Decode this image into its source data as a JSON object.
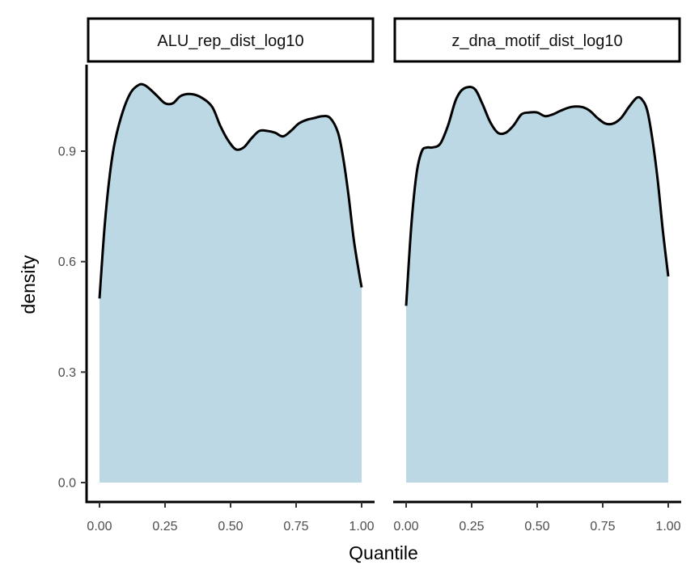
{
  "chart_data": {
    "type": "area",
    "xlabel": "Quantile",
    "ylabel": "density",
    "xlim": [
      0,
      1
    ],
    "ylim": [
      0,
      1.1
    ],
    "x_ticks": [
      0,
      0.25,
      0.5,
      0.75,
      1
    ],
    "x_tick_labels": [
      "0.00",
      "0.25",
      "0.50",
      "0.75",
      "1.00"
    ],
    "y_ticks": [
      0,
      0.3,
      0.6,
      0.9
    ],
    "y_tick_labels": [
      "0.0",
      "0.3",
      "0.6",
      "0.9"
    ],
    "fill_color": "#bcd8e4",
    "line_color": "#000000",
    "grid": false,
    "legend": "none",
    "panels": [
      {
        "strip_label": "ALU_rep_dist_log10",
        "x": [
          0.0,
          0.02,
          0.04,
          0.06,
          0.09,
          0.12,
          0.15,
          0.17,
          0.19,
          0.22,
          0.25,
          0.28,
          0.31,
          0.35,
          0.39,
          0.43,
          0.46,
          0.49,
          0.52,
          0.55,
          0.58,
          0.61,
          0.64,
          0.67,
          0.7,
          0.73,
          0.76,
          0.79,
          0.82,
          0.85,
          0.88,
          0.91,
          0.93,
          0.95,
          0.97,
          0.99,
          1.0
        ],
        "y": [
          0.5,
          0.7,
          0.84,
          0.93,
          1.01,
          1.06,
          1.08,
          1.08,
          1.07,
          1.05,
          1.03,
          1.03,
          1.05,
          1.055,
          1.045,
          1.02,
          0.97,
          0.93,
          0.905,
          0.91,
          0.935,
          0.955,
          0.955,
          0.95,
          0.94,
          0.955,
          0.975,
          0.985,
          0.99,
          0.995,
          0.99,
          0.95,
          0.88,
          0.78,
          0.66,
          0.57,
          0.53
        ]
      },
      {
        "strip_label": "z_dna_motif_dist_log10",
        "x": [
          0.0,
          0.02,
          0.04,
          0.06,
          0.08,
          0.1,
          0.13,
          0.16,
          0.19,
          0.22,
          0.26,
          0.29,
          0.32,
          0.35,
          0.38,
          0.41,
          0.44,
          0.47,
          0.5,
          0.53,
          0.56,
          0.59,
          0.63,
          0.67,
          0.7,
          0.73,
          0.76,
          0.79,
          0.82,
          0.85,
          0.88,
          0.9,
          0.92,
          0.94,
          0.96,
          0.98,
          1.0
        ],
        "y": [
          0.48,
          0.7,
          0.84,
          0.9,
          0.91,
          0.91,
          0.92,
          0.97,
          1.04,
          1.07,
          1.07,
          1.03,
          0.98,
          0.95,
          0.95,
          0.97,
          1.0,
          1.005,
          1.005,
          0.995,
          1.0,
          1.01,
          1.02,
          1.02,
          1.01,
          0.99,
          0.975,
          0.975,
          0.99,
          1.02,
          1.045,
          1.04,
          1.01,
          0.93,
          0.82,
          0.68,
          0.56
        ]
      }
    ]
  }
}
